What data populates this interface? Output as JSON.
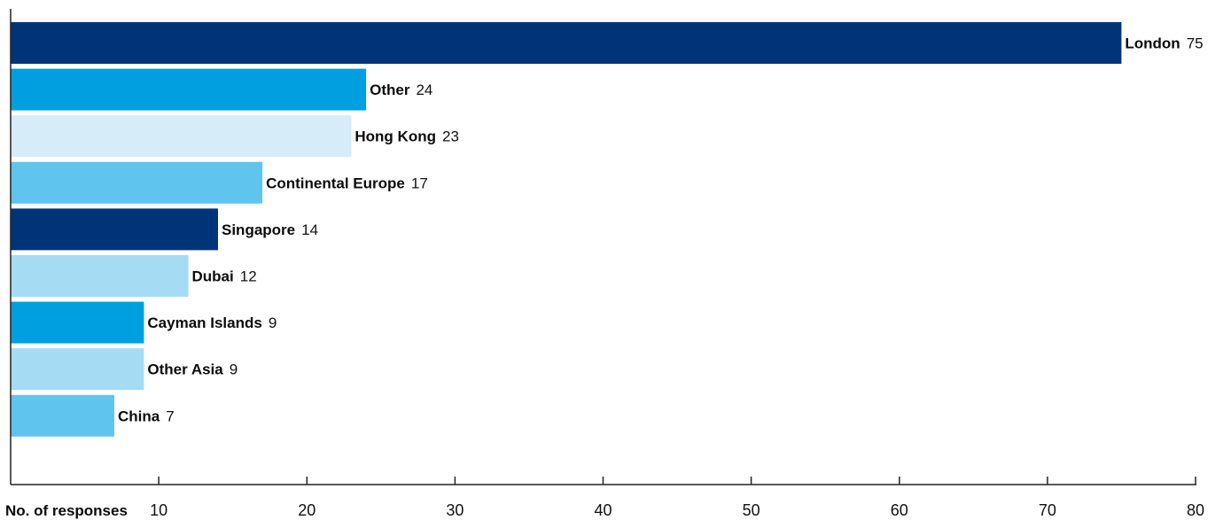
{
  "chart_data": {
    "type": "bar",
    "orientation": "horizontal",
    "title": "",
    "xlabel": "No. of responses",
    "ylabel": "",
    "xlim": [
      0,
      80
    ],
    "xticks": [
      10,
      20,
      30,
      40,
      50,
      60,
      70,
      80
    ],
    "grid": false,
    "legend": "none",
    "categories": [
      "London",
      "Other",
      "Hong Kong",
      "Continental Europe",
      "Singapore",
      "Dubai",
      "Cayman Islands",
      "Other Asia",
      "China"
    ],
    "values": [
      75,
      24,
      23,
      17,
      14,
      12,
      9,
      9,
      7
    ],
    "colors": [
      "#003478",
      "#009fe0",
      "#d6ecf9",
      "#5fc5ee",
      "#003478",
      "#a6dbf4",
      "#009fe0",
      "#a6dbf4",
      "#5fc5ee"
    ]
  }
}
